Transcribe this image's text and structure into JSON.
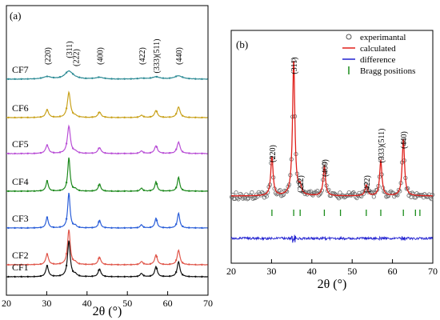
{
  "chart_data": [
    {
      "type": "line",
      "panel_label": "(a)",
      "xlabel": "2θ (°)",
      "xlim": [
        20,
        70
      ],
      "x_ticks": [
        20,
        30,
        40,
        50,
        60,
        70
      ],
      "peak_labels": [
        {
          "text": "(220)",
          "x": 30.1
        },
        {
          "text": "(311)",
          "x": 35.5
        },
        {
          "text": "(222)",
          "x": 37.2
        },
        {
          "text": "(400)",
          "x": 43.1
        },
        {
          "text": "(422)",
          "x": 53.5
        },
        {
          "text": "(333)(511)",
          "x": 57.1
        },
        {
          "text": "(440)",
          "x": 62.7
        }
      ],
      "peaks": [
        {
          "x": 30.1,
          "rel": 0.3
        },
        {
          "x": 35.5,
          "rel": 1.0
        },
        {
          "x": 37.1,
          "rel": 0.06
        },
        {
          "x": 43.1,
          "rel": 0.22
        },
        {
          "x": 53.5,
          "rel": 0.09
        },
        {
          "x": 57.1,
          "rel": 0.28
        },
        {
          "x": 62.7,
          "rel": 0.42
        }
      ],
      "series": [
        {
          "name": "CF7",
          "color": "#2f8c96",
          "intensity": 0.55,
          "width": 1.2,
          "noise": 0.12
        },
        {
          "name": "CF6",
          "color": "#c9a21c",
          "intensity": 0.9,
          "width": 0.45,
          "noise": 0.05
        },
        {
          "name": "CF5",
          "color": "#b94fd6",
          "intensity": 0.9,
          "width": 0.45,
          "noise": 0.06
        },
        {
          "name": "CF4",
          "color": "#1e8a1e",
          "intensity": 1.0,
          "width": 0.35,
          "noise": 0.05
        },
        {
          "name": "CF3",
          "color": "#2b5fd9",
          "intensity": 1.0,
          "width": 0.35,
          "noise": 0.04
        },
        {
          "name": "CF2",
          "color": "#e0574b",
          "intensity": 1.0,
          "width": 0.4,
          "noise": 0.05
        },
        {
          "name": "CF1",
          "color": "#111111",
          "intensity": 1.0,
          "width": 0.4,
          "noise": 0.04
        }
      ]
    },
    {
      "type": "scatter",
      "panel_label": "(b)",
      "xlabel": "2θ (°)",
      "xlim": [
        20,
        70
      ],
      "x_ticks": [
        20,
        30,
        40,
        50,
        60,
        70
      ],
      "legend": {
        "position": "top-right",
        "entries": [
          {
            "label": "experimantal",
            "style": "circle",
            "color": "#555555"
          },
          {
            "label": "calculated",
            "style": "line",
            "color": "#e0201b"
          },
          {
            "label": "difference",
            "style": "line",
            "color": "#2020d0"
          },
          {
            "label": "Bragg positions",
            "style": "tick",
            "color": "#1a8c1a"
          }
        ]
      },
      "peak_labels": [
        {
          "text": "(311)",
          "x": 35.5
        },
        {
          "text": "(220)",
          "x": 30.1
        },
        {
          "text": "(222)",
          "x": 37.1
        },
        {
          "text": "(400)",
          "x": 43.1
        },
        {
          "text": "(422)",
          "x": 53.5
        },
        {
          "text": "(333)(511)",
          "x": 57.1
        },
        {
          "text": "(440)",
          "x": 62.7
        }
      ],
      "peaks": [
        {
          "x": 30.1,
          "rel": 0.29
        },
        {
          "x": 35.5,
          "rel": 1.0
        },
        {
          "x": 37.1,
          "rel": 0.06
        },
        {
          "x": 43.1,
          "rel": 0.22
        },
        {
          "x": 53.5,
          "rel": 0.08
        },
        {
          "x": 57.1,
          "rel": 0.26
        },
        {
          "x": 62.7,
          "rel": 0.42
        }
      ],
      "bragg_positions": [
        30.1,
        35.5,
        37.1,
        43.1,
        47.1,
        53.5,
        57.1,
        62.7,
        65.7,
        66.8
      ]
    }
  ]
}
